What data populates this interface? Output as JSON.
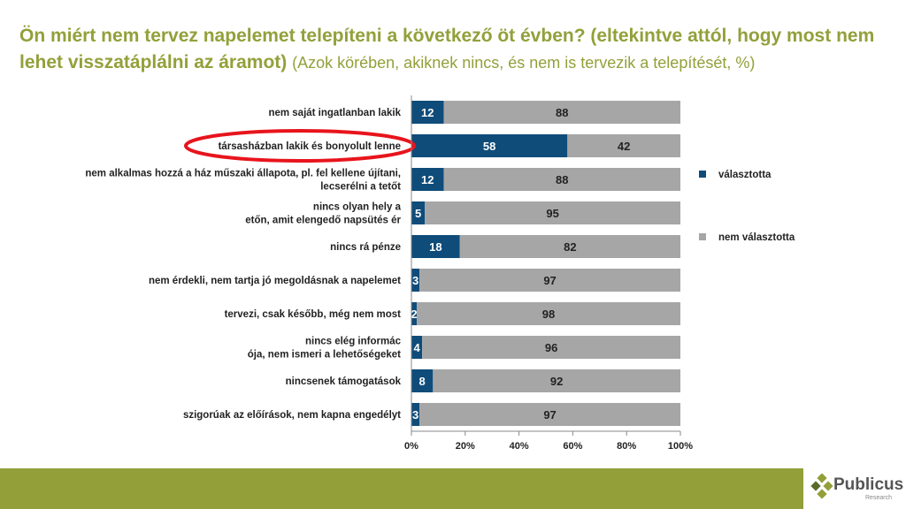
{
  "title": {
    "bold": "Ön miért nem tervez napelemet telepíteni a következő öt évben? (eltekintve attól, hogy most nem lehet visszatáplálni az áramot)",
    "normal": "(Azok körében, akiknek nincs, és nem is tervezik a telepítését, %)"
  },
  "chart_data": {
    "type": "bar",
    "orientation": "horizontal",
    "stacked": true,
    "categories": [
      "nem saját ingatlanban lakik",
      "társasházban lakik és bonyolult lenne",
      "nem alkalmas hozzá a ház műszaki állapota, pl. fel kellene újítani, lecserélni a tetőt",
      "nincs olyan hely a tetőn, amit elengedő napsütés ér",
      "nincs rá pénze",
      "nem érdekli, nem tartja jó megoldásnak a napelemet",
      "tervezi, csak később, még nem most",
      "nincs elég információja, nem ismeri a lehetőségeket",
      "nincsenek támogatások",
      "szigorúak az előírások, nem kapna engedélyt"
    ],
    "series": [
      {
        "name": "választotta",
        "color": "#0f4c7a",
        "values": [
          12,
          58,
          12,
          5,
          18,
          3,
          2,
          4,
          8,
          3
        ]
      },
      {
        "name": "nem választotta",
        "color": "#a6a6a6",
        "values": [
          88,
          42,
          88,
          95,
          82,
          97,
          98,
          96,
          92,
          97
        ]
      }
    ],
    "xticks": [
      "0%",
      "20%",
      "40%",
      "60%",
      "80%",
      "100%"
    ],
    "xlim": [
      0,
      100
    ],
    "legend": "right",
    "highlighted_category": "társasházban lakik és bonyolult lenne",
    "highlight_color": "#e8141c"
  },
  "logo": {
    "name": "Publicus",
    "sub": "Research"
  }
}
